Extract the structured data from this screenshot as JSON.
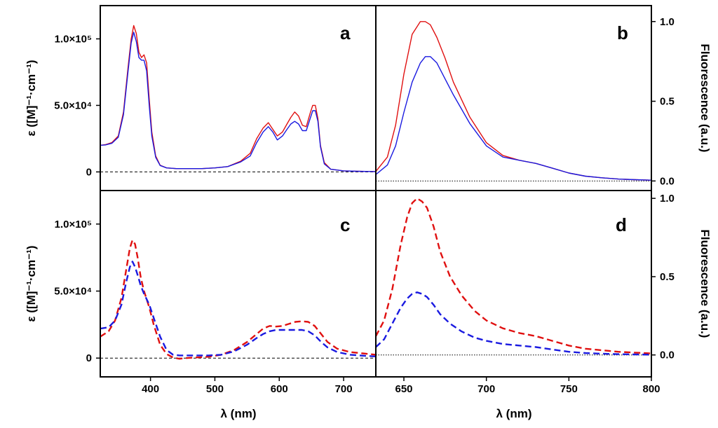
{
  "chart_data": [
    {
      "id": "a",
      "type": "line",
      "panel_label": "a",
      "xlabel": "",
      "ylabel": "ε  ([M]⁻¹·cm⁻¹)",
      "xlim": [
        322,
        750
      ],
      "ylim": [
        -14000,
        125000
      ],
      "yticks": [
        0,
        50000,
        100000
      ],
      "ytick_labels": [
        "0",
        "5.0×10⁴",
        "1.0×10⁵"
      ],
      "baseline": 0,
      "series": [
        {
          "name": "red",
          "color": "#e01010",
          "dash": "solid",
          "x": [
            322,
            330,
            340,
            350,
            358,
            365,
            370,
            374,
            378,
            382,
            386,
            390,
            394,
            398,
            402,
            408,
            415,
            425,
            440,
            460,
            480,
            500,
            520,
            540,
            555,
            565,
            575,
            583,
            590,
            597,
            605,
            612,
            618,
            624,
            630,
            636,
            642,
            648,
            652,
            656,
            660,
            664,
            670,
            680,
            700,
            720,
            740,
            750
          ],
          "y": [
            20000,
            20500,
            22000,
            27000,
            45000,
            78000,
            100000,
            110000,
            104000,
            90000,
            86000,
            88000,
            82000,
            55000,
            30000,
            12000,
            5000,
            3000,
            2500,
            2500,
            2500,
            3000,
            4000,
            8000,
            14000,
            25000,
            33000,
            37000,
            32000,
            27000,
            30000,
            36000,
            41000,
            45000,
            42000,
            35000,
            34000,
            44000,
            50000,
            50000,
            40000,
            20000,
            7000,
            2000,
            800,
            500,
            300,
            200
          ]
        },
        {
          "name": "blue",
          "color": "#1a1ae0",
          "dash": "solid",
          "x": [
            322,
            330,
            340,
            350,
            358,
            365,
            370,
            374,
            378,
            382,
            386,
            390,
            394,
            398,
            402,
            408,
            415,
            425,
            440,
            460,
            480,
            500,
            520,
            540,
            555,
            565,
            575,
            583,
            590,
            597,
            605,
            612,
            618,
            624,
            630,
            636,
            642,
            648,
            652,
            656,
            660,
            664,
            670,
            680,
            700,
            720,
            740,
            750
          ],
          "y": [
            20000,
            20300,
            21500,
            26000,
            43000,
            75000,
            97000,
            105000,
            98000,
            86000,
            84000,
            84000,
            76000,
            50000,
            27000,
            11000,
            4800,
            3000,
            2500,
            2500,
            2500,
            3000,
            4000,
            7500,
            12000,
            22000,
            30000,
            34000,
            30000,
            24000,
            27000,
            32000,
            36000,
            38000,
            36000,
            31000,
            31000,
            40000,
            46000,
            46000,
            38000,
            19000,
            6000,
            2000,
            800,
            500,
            300,
            200
          ]
        }
      ]
    },
    {
      "id": "b",
      "type": "line",
      "panel_label": "b",
      "xlabel": "",
      "ylabel_right": "Fluorescence (a.u.)",
      "xlim": [
        633,
        800
      ],
      "ylim": [
        -0.06,
        1.1
      ],
      "yticks": [
        0,
        0.5,
        1
      ],
      "ytick_labels": [
        "0.0",
        "0.5",
        "1.0"
      ],
      "baseline": 0,
      "series": [
        {
          "name": "red",
          "color": "#e01010",
          "dash": "solid",
          "x": [
            633,
            640,
            645,
            650,
            655,
            660,
            663,
            666,
            670,
            675,
            680,
            690,
            700,
            710,
            720,
            730,
            740,
            750,
            760,
            770,
            780,
            790,
            800
          ],
          "y": [
            0.06,
            0.15,
            0.35,
            0.67,
            0.92,
            1.0,
            1.0,
            0.98,
            0.9,
            0.77,
            0.62,
            0.4,
            0.24,
            0.16,
            0.13,
            0.11,
            0.08,
            0.05,
            0.03,
            0.02,
            0.012,
            0.008,
            0.005
          ]
        },
        {
          "name": "blue",
          "color": "#1a1ae0",
          "dash": "solid",
          "x": [
            633,
            640,
            645,
            650,
            655,
            660,
            663,
            666,
            670,
            675,
            680,
            690,
            700,
            710,
            720,
            730,
            740,
            750,
            760,
            770,
            780,
            790,
            800
          ],
          "y": [
            0.04,
            0.1,
            0.22,
            0.43,
            0.62,
            0.74,
            0.78,
            0.78,
            0.74,
            0.64,
            0.54,
            0.36,
            0.22,
            0.15,
            0.13,
            0.11,
            0.08,
            0.05,
            0.03,
            0.02,
            0.012,
            0.008,
            0.005
          ]
        }
      ]
    },
    {
      "id": "c",
      "type": "line",
      "panel_label": "c",
      "xlabel": "λ (nm)",
      "ylabel": "ε  ([M]⁻¹·cm⁻¹)",
      "xlim": [
        322,
        750
      ],
      "xticks": [
        400,
        500,
        600,
        700
      ],
      "xtick_labels": [
        "400",
        "500",
        "600",
        "700"
      ],
      "ylim": [
        -14000,
        125000
      ],
      "yticks": [
        0,
        50000,
        100000
      ],
      "ytick_labels": [
        "0",
        "5.0×10⁴",
        "1.0×10⁵"
      ],
      "baseline": 0,
      "series": [
        {
          "name": "red",
          "color": "#e01010",
          "dash": "dashed",
          "x": [
            322,
            335,
            345,
            355,
            362,
            368,
            372,
            376,
            380,
            385,
            390,
            398,
            405,
            415,
            425,
            435,
            445,
            455,
            470,
            490,
            510,
            530,
            550,
            565,
            575,
            585,
            595,
            605,
            615,
            625,
            635,
            645,
            655,
            665,
            675,
            690,
            710,
            730,
            750
          ],
          "y": [
            16000,
            20000,
            28000,
            45000,
            65000,
            82000,
            88000,
            85000,
            75000,
            60000,
            50000,
            38000,
            25000,
            10000,
            3000,
            500,
            -500,
            0,
            500,
            1000,
            2500,
            6000,
            12000,
            18000,
            22000,
            24000,
            23500,
            24000,
            25500,
            27000,
            27500,
            27000,
            24000,
            18000,
            12000,
            7000,
            4500,
            3500,
            2500
          ]
        },
        {
          "name": "blue",
          "color": "#1a1ae0",
          "dash": "dashed",
          "x": [
            322,
            335,
            345,
            355,
            362,
            368,
            372,
            376,
            380,
            385,
            390,
            398,
            405,
            415,
            425,
            435,
            445,
            455,
            470,
            490,
            510,
            530,
            550,
            565,
            575,
            585,
            595,
            605,
            615,
            625,
            635,
            645,
            655,
            665,
            675,
            690,
            710,
            730,
            750
          ],
          "y": [
            22000,
            23000,
            28000,
            40000,
            56000,
            68000,
            72000,
            68000,
            62000,
            54000,
            48000,
            40000,
            30000,
            16000,
            6000,
            2500,
            2000,
            2000,
            2000,
            2000,
            2500,
            5000,
            10000,
            15000,
            18000,
            20000,
            21000,
            21000,
            21000,
            21000,
            21000,
            20000,
            17000,
            12000,
            8000,
            4500,
            2500,
            1800,
            1200
          ]
        }
      ]
    },
    {
      "id": "d",
      "type": "line",
      "panel_label": "d",
      "xlabel": "λ (nm)",
      "ylabel_right": "Fluorescence (a.u.)",
      "xlim": [
        633,
        800
      ],
      "xticks": [
        650,
        700,
        750,
        800
      ],
      "xtick_labels": [
        "650",
        "700",
        "750",
        "800"
      ],
      "ylim": [
        -0.14,
        1.05
      ],
      "yticks": [
        0,
        0.5,
        1
      ],
      "ytick_labels": [
        "0.0",
        "0.5",
        "1.0"
      ],
      "baseline": 0,
      "series": [
        {
          "name": "red",
          "color": "#e01010",
          "dash": "dashed",
          "x": [
            633,
            638,
            643,
            648,
            652,
            655,
            658,
            661,
            664,
            668,
            672,
            678,
            685,
            693,
            700,
            710,
            720,
            730,
            740,
            750,
            760,
            770,
            780,
            790,
            800
          ],
          "y": [
            0.12,
            0.22,
            0.42,
            0.7,
            0.88,
            0.97,
            1.0,
            0.98,
            0.94,
            0.82,
            0.66,
            0.5,
            0.38,
            0.28,
            0.22,
            0.17,
            0.14,
            0.12,
            0.09,
            0.06,
            0.04,
            0.03,
            0.02,
            0.015,
            0.01
          ]
        },
        {
          "name": "blue",
          "color": "#1a1ae0",
          "dash": "dashed",
          "x": [
            633,
            638,
            643,
            648,
            652,
            655,
            658,
            661,
            664,
            668,
            672,
            678,
            685,
            693,
            700,
            710,
            720,
            730,
            740,
            750,
            760,
            770,
            780,
            790,
            800
          ],
          "y": [
            0.05,
            0.1,
            0.2,
            0.3,
            0.36,
            0.39,
            0.4,
            0.39,
            0.37,
            0.32,
            0.26,
            0.2,
            0.15,
            0.11,
            0.09,
            0.07,
            0.06,
            0.05,
            0.035,
            0.02,
            0.012,
            0.008,
            0.005,
            0.003,
            0.002
          ]
        }
      ]
    }
  ]
}
